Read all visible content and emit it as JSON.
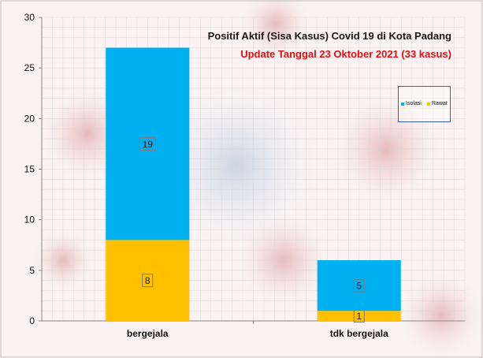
{
  "chart_data": {
    "type": "bar",
    "stacked": true,
    "title": "Positif Aktif  (Sisa Kasus) Covid 19 di Kota Padang",
    "subtitle": "Update Tanggal  23  Oktober  2021 (33  kasus)",
    "xlabel": "",
    "ylabel": "",
    "categories": [
      "bergejala",
      "tdk bergejala"
    ],
    "series": [
      {
        "name": "Rawat",
        "values": [
          8,
          1
        ],
        "color": "#ffc000"
      },
      {
        "name": "Isolasi",
        "values": [
          19,
          5
        ],
        "color": "#00b0f0"
      }
    ],
    "ylim": [
      0,
      30
    ],
    "yticks": [
      "0",
      "5",
      "10",
      "15",
      "20",
      "25",
      "30"
    ],
    "grid": true,
    "legend": "top-right",
    "legend_order": [
      "Isolasi",
      "Rawat"
    ]
  }
}
